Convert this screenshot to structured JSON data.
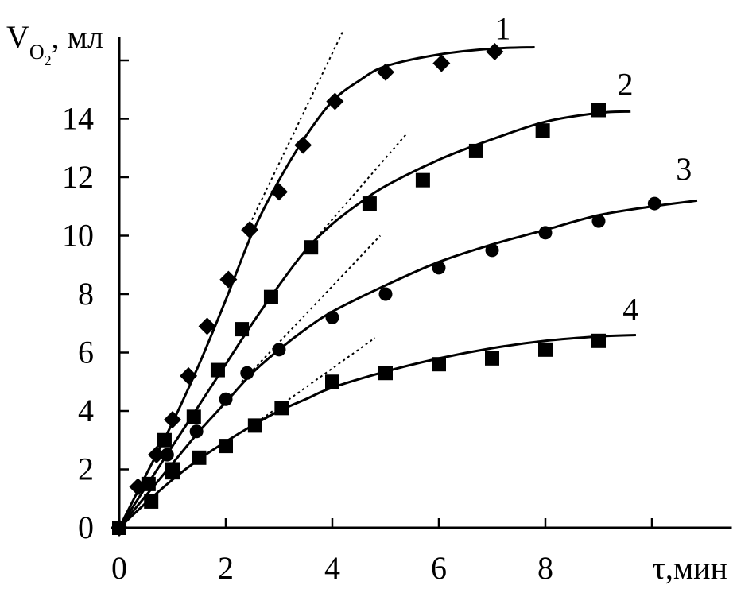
{
  "chart_data": {
    "type": "scatter",
    "title": "",
    "xlabel": "τ,мин",
    "ylabel": {
      "main": "V",
      "sub": "O",
      "subsub": "2",
      "rest": ", мл"
    },
    "xlim": [
      0,
      11.5
    ],
    "ylim": [
      0,
      16.8
    ],
    "x_ticks": [
      0,
      2,
      4,
      6,
      8
    ],
    "y_ticks": [
      0,
      2,
      4,
      6,
      8,
      10,
      12,
      14
    ],
    "x_tick_labels": [
      "0",
      "2",
      "4",
      "6",
      "8"
    ],
    "y_tick_labels": [
      "0",
      "2",
      "4",
      "6",
      "8",
      "10",
      "12",
      "14"
    ],
    "y_extra_ticks": [
      16
    ],
    "grid": false,
    "legend": "none",
    "series": [
      {
        "label": "1",
        "marker": "diamond",
        "points": [
          [
            0,
            0
          ],
          [
            0.35,
            1.4
          ],
          [
            0.7,
            2.5
          ],
          [
            1.0,
            3.7
          ],
          [
            1.3,
            5.2
          ],
          [
            1.65,
            6.9
          ],
          [
            2.05,
            8.5
          ],
          [
            2.45,
            10.2
          ],
          [
            3.0,
            11.5
          ],
          [
            3.45,
            13.1
          ],
          [
            4.05,
            14.6
          ],
          [
            5.0,
            15.6
          ],
          [
            6.05,
            15.9
          ],
          [
            7.05,
            16.3
          ]
        ],
        "curve": [
          [
            0,
            0
          ],
          [
            0.5,
            1.8
          ],
          [
            1.0,
            3.6
          ],
          [
            1.5,
            5.6
          ],
          [
            2.0,
            7.8
          ],
          [
            2.5,
            10.1
          ],
          [
            3.0,
            11.9
          ],
          [
            3.5,
            13.4
          ],
          [
            4.0,
            14.6
          ],
          [
            4.5,
            15.3
          ],
          [
            5.0,
            15.8
          ],
          [
            6.0,
            16.2
          ],
          [
            7.0,
            16.4
          ],
          [
            7.8,
            16.45
          ]
        ],
        "tangent": [
          [
            2.4,
            10.2
          ],
          [
            4.2,
            17.0
          ]
        ],
        "label_at": [
          7.2,
          17.1
        ]
      },
      {
        "label": "2",
        "marker": "square",
        "points": [
          [
            0,
            0
          ],
          [
            0.6,
            0.9
          ],
          [
            0.85,
            3.0
          ],
          [
            1.0,
            1.9
          ],
          [
            1.4,
            3.8
          ],
          [
            1.85,
            5.4
          ],
          [
            2.3,
            6.8
          ],
          [
            2.85,
            7.9
          ],
          [
            3.6,
            9.6
          ],
          [
            4.7,
            11.1
          ],
          [
            5.7,
            11.9
          ],
          [
            6.7,
            12.9
          ],
          [
            7.95,
            13.6
          ],
          [
            9.0,
            14.3
          ]
        ],
        "curve": [
          [
            0,
            0
          ],
          [
            0.5,
            1.4
          ],
          [
            1.0,
            2.8
          ],
          [
            1.5,
            4.2
          ],
          [
            2.0,
            5.6
          ],
          [
            2.5,
            7.0
          ],
          [
            3.0,
            8.3
          ],
          [
            3.5,
            9.5
          ],
          [
            4.0,
            10.4
          ],
          [
            4.5,
            11.1
          ],
          [
            5.0,
            11.7
          ],
          [
            6.0,
            12.6
          ],
          [
            7.0,
            13.3
          ],
          [
            8.0,
            13.9
          ],
          [
            9.0,
            14.2
          ],
          [
            9.6,
            14.25
          ]
        ],
        "tangent": [
          [
            3.5,
            9.5
          ],
          [
            5.4,
            13.5
          ]
        ],
        "label_at": [
          9.5,
          15.2
        ]
      },
      {
        "label": "3",
        "marker": "circle",
        "points": [
          [
            0,
            0
          ],
          [
            0.9,
            2.5
          ],
          [
            1.45,
            3.3
          ],
          [
            2.0,
            4.4
          ],
          [
            2.4,
            5.3
          ],
          [
            3.0,
            6.1
          ],
          [
            4.0,
            7.2
          ],
          [
            5.0,
            8.0
          ],
          [
            6.0,
            8.9
          ],
          [
            7.0,
            9.5
          ],
          [
            8.0,
            10.1
          ],
          [
            9.0,
            10.5
          ],
          [
            10.05,
            11.1
          ]
        ],
        "curve": [
          [
            0,
            0
          ],
          [
            0.5,
            1.1
          ],
          [
            1.0,
            2.2
          ],
          [
            1.5,
            3.3
          ],
          [
            2.0,
            4.3
          ],
          [
            2.5,
            5.3
          ],
          [
            3.0,
            6.1
          ],
          [
            3.5,
            6.8
          ],
          [
            4.0,
            7.4
          ],
          [
            5.0,
            8.3
          ],
          [
            6.0,
            9.1
          ],
          [
            7.0,
            9.7
          ],
          [
            8.0,
            10.2
          ],
          [
            9.0,
            10.7
          ],
          [
            10.0,
            11.0
          ],
          [
            10.85,
            11.2
          ]
        ],
        "tangent": [
          [
            2.3,
            5.0
          ],
          [
            4.9,
            10.0
          ]
        ],
        "label_at": [
          10.6,
          12.3
        ]
      },
      {
        "label": "4",
        "marker": "square",
        "points": [
          [
            0,
            0
          ],
          [
            0.55,
            1.5
          ],
          [
            1.0,
            2.0
          ],
          [
            1.5,
            2.4
          ],
          [
            2.0,
            2.8
          ],
          [
            2.55,
            3.5
          ],
          [
            3.05,
            4.1
          ],
          [
            4.0,
            5.0
          ],
          [
            5.0,
            5.3
          ],
          [
            6.0,
            5.6
          ],
          [
            7.0,
            5.8
          ],
          [
            8.0,
            6.1
          ],
          [
            9.0,
            6.4
          ]
        ],
        "curve": [
          [
            0,
            0
          ],
          [
            0.5,
            0.85
          ],
          [
            1.0,
            1.65
          ],
          [
            1.5,
            2.35
          ],
          [
            2.0,
            2.95
          ],
          [
            2.5,
            3.5
          ],
          [
            3.0,
            4.0
          ],
          [
            3.5,
            4.4
          ],
          [
            4.0,
            4.8
          ],
          [
            5.0,
            5.35
          ],
          [
            6.0,
            5.8
          ],
          [
            7.0,
            6.15
          ],
          [
            8.0,
            6.4
          ],
          [
            9.0,
            6.55
          ],
          [
            9.7,
            6.6
          ]
        ],
        "tangent": [
          [
            2.5,
            3.5
          ],
          [
            4.8,
            6.5
          ]
        ],
        "label_at": [
          9.6,
          7.5
        ]
      }
    ]
  }
}
